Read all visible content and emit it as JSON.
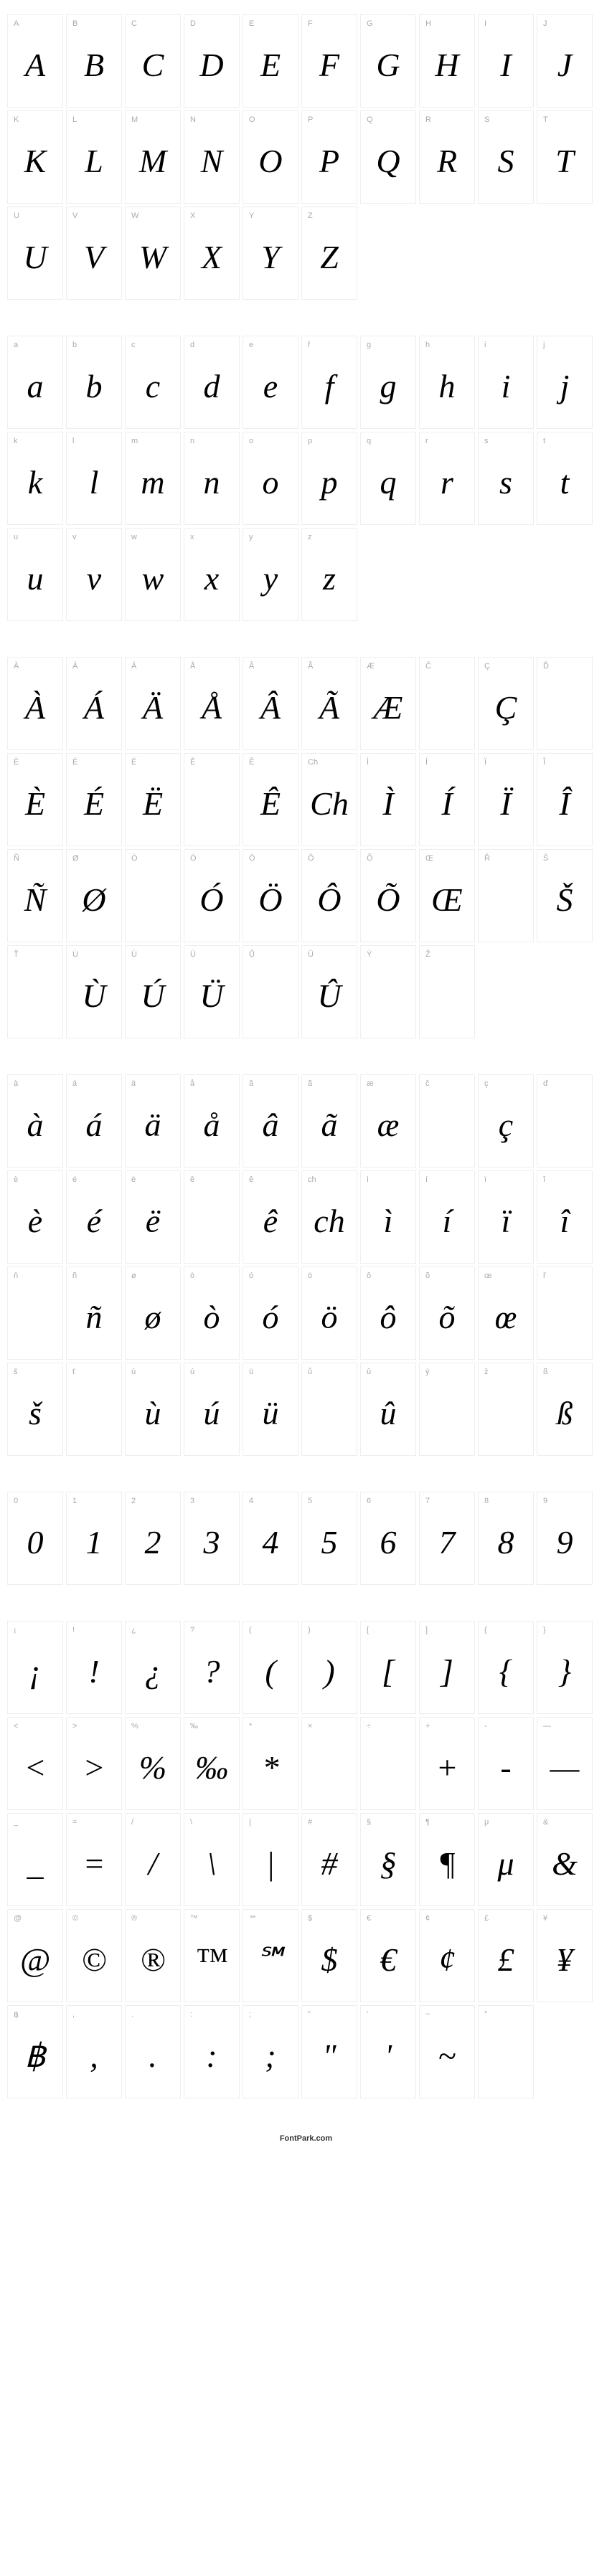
{
  "footer": "FontPark.com",
  "cell_style": {
    "width": 78,
    "height": 130,
    "border_color": "#eeeeee",
    "background": "#ffffff",
    "label_color": "#aaaaaa",
    "label_fontsize": 11,
    "glyph_fontsize": 46,
    "glyph_style": "italic",
    "glyph_color": "#000000"
  },
  "sections": [
    {
      "id": "uppercase",
      "glyphs": [
        {
          "label": "A",
          "char": "A"
        },
        {
          "label": "B",
          "char": "B"
        },
        {
          "label": "C",
          "char": "C"
        },
        {
          "label": "D",
          "char": "D"
        },
        {
          "label": "E",
          "char": "E"
        },
        {
          "label": "F",
          "char": "F"
        },
        {
          "label": "G",
          "char": "G"
        },
        {
          "label": "H",
          "char": "H"
        },
        {
          "label": "I",
          "char": "I"
        },
        {
          "label": "J",
          "char": "J"
        },
        {
          "label": "K",
          "char": "K"
        },
        {
          "label": "L",
          "char": "L"
        },
        {
          "label": "M",
          "char": "M"
        },
        {
          "label": "N",
          "char": "N"
        },
        {
          "label": "O",
          "char": "O"
        },
        {
          "label": "P",
          "char": "P"
        },
        {
          "label": "Q",
          "char": "Q"
        },
        {
          "label": "R",
          "char": "R"
        },
        {
          "label": "S",
          "char": "S"
        },
        {
          "label": "T",
          "char": "T"
        },
        {
          "label": "U",
          "char": "U"
        },
        {
          "label": "V",
          "char": "V"
        },
        {
          "label": "W",
          "char": "W"
        },
        {
          "label": "X",
          "char": "X"
        },
        {
          "label": "Y",
          "char": "Y"
        },
        {
          "label": "Z",
          "char": "Z"
        }
      ]
    },
    {
      "id": "lowercase",
      "glyphs": [
        {
          "label": "a",
          "char": "a"
        },
        {
          "label": "b",
          "char": "b"
        },
        {
          "label": "c",
          "char": "c"
        },
        {
          "label": "d",
          "char": "d"
        },
        {
          "label": "e",
          "char": "e"
        },
        {
          "label": "f",
          "char": "f"
        },
        {
          "label": "g",
          "char": "g"
        },
        {
          "label": "h",
          "char": "h"
        },
        {
          "label": "i",
          "char": "i"
        },
        {
          "label": "j",
          "char": "j"
        },
        {
          "label": "k",
          "char": "k"
        },
        {
          "label": "l",
          "char": "l"
        },
        {
          "label": "m",
          "char": "m"
        },
        {
          "label": "n",
          "char": "n"
        },
        {
          "label": "o",
          "char": "o"
        },
        {
          "label": "p",
          "char": "p"
        },
        {
          "label": "q",
          "char": "q"
        },
        {
          "label": "r",
          "char": "r"
        },
        {
          "label": "s",
          "char": "s"
        },
        {
          "label": "t",
          "char": "t"
        },
        {
          "label": "u",
          "char": "u"
        },
        {
          "label": "v",
          "char": "v"
        },
        {
          "label": "w",
          "char": "w"
        },
        {
          "label": "x",
          "char": "x"
        },
        {
          "label": "y",
          "char": "y"
        },
        {
          "label": "z",
          "char": "z"
        }
      ]
    },
    {
      "id": "uppercase-accented",
      "glyphs": [
        {
          "label": "À",
          "char": "À"
        },
        {
          "label": "Á",
          "char": "Á"
        },
        {
          "label": "Ä",
          "char": "Ä"
        },
        {
          "label": "Å",
          "char": "Å"
        },
        {
          "label": "Â",
          "char": "Â"
        },
        {
          "label": "Ã",
          "char": "Ã"
        },
        {
          "label": "Æ",
          "char": "Æ"
        },
        {
          "label": "Č",
          "char": "",
          "empty": true
        },
        {
          "label": "Ç",
          "char": "Ç"
        },
        {
          "label": "Ď",
          "char": "",
          "empty": true
        },
        {
          "label": "È",
          "char": "È"
        },
        {
          "label": "É",
          "char": "É"
        },
        {
          "label": "Ë",
          "char": "Ë"
        },
        {
          "label": "Ě",
          "char": "",
          "empty": true
        },
        {
          "label": "Ê",
          "char": "Ê"
        },
        {
          "label": "Ch",
          "char": "Ch"
        },
        {
          "label": "Ì",
          "char": "Ì"
        },
        {
          "label": "Í",
          "char": "Í"
        },
        {
          "label": "Ï",
          "char": "Ï"
        },
        {
          "label": "Î",
          "char": "Î"
        },
        {
          "label": "Ñ",
          "char": "Ñ"
        },
        {
          "label": "Ø",
          "char": "Ø"
        },
        {
          "label": "Ò",
          "char": "",
          "empty": true
        },
        {
          "label": "Ó",
          "char": "Ó"
        },
        {
          "label": "Ö",
          "char": "Ö"
        },
        {
          "label": "Ô",
          "char": "Ô"
        },
        {
          "label": "Õ",
          "char": "Õ"
        },
        {
          "label": "Œ",
          "char": "Œ"
        },
        {
          "label": "Ř",
          "char": "",
          "empty": true
        },
        {
          "label": "Š",
          "char": "Š"
        },
        {
          "label": "Ť",
          "char": "",
          "empty": true
        },
        {
          "label": "Ù",
          "char": "Ù"
        },
        {
          "label": "Ú",
          "char": "Ú"
        },
        {
          "label": "Ü",
          "char": "Ü"
        },
        {
          "label": "Ů",
          "char": "",
          "empty": true
        },
        {
          "label": "Û",
          "char": "Û"
        },
        {
          "label": "Ý",
          "char": "",
          "empty": true
        },
        {
          "label": "Ž",
          "char": "",
          "empty": true
        }
      ]
    },
    {
      "id": "lowercase-accented",
      "glyphs": [
        {
          "label": "à",
          "char": "à"
        },
        {
          "label": "á",
          "char": "á"
        },
        {
          "label": "ä",
          "char": "ä"
        },
        {
          "label": "å",
          "char": "å"
        },
        {
          "label": "â",
          "char": "â"
        },
        {
          "label": "ã",
          "char": "ã"
        },
        {
          "label": "æ",
          "char": "æ"
        },
        {
          "label": "č",
          "char": "",
          "empty": true
        },
        {
          "label": "ç",
          "char": "ç"
        },
        {
          "label": "ď",
          "char": "",
          "empty": true
        },
        {
          "label": "è",
          "char": "è"
        },
        {
          "label": "é",
          "char": "é"
        },
        {
          "label": "ë",
          "char": "ë"
        },
        {
          "label": "ě",
          "char": "",
          "empty": true
        },
        {
          "label": "ê",
          "char": "ê"
        },
        {
          "label": "ch",
          "char": "ch"
        },
        {
          "label": "ì",
          "char": "ì"
        },
        {
          "label": "í",
          "char": "í"
        },
        {
          "label": "ï",
          "char": "ï"
        },
        {
          "label": "î",
          "char": "î"
        },
        {
          "label": "ň",
          "char": "",
          "empty": true
        },
        {
          "label": "ñ",
          "char": "ñ"
        },
        {
          "label": "ø",
          "char": "ø"
        },
        {
          "label": "ò",
          "char": "ò"
        },
        {
          "label": "ó",
          "char": "ó"
        },
        {
          "label": "ö",
          "char": "ö"
        },
        {
          "label": "ô",
          "char": "ô"
        },
        {
          "label": "õ",
          "char": "õ"
        },
        {
          "label": "œ",
          "char": "œ"
        },
        {
          "label": "ř",
          "char": "",
          "empty": true
        },
        {
          "label": "š",
          "char": "š"
        },
        {
          "label": "ť",
          "char": "",
          "empty": true
        },
        {
          "label": "ù",
          "char": "ù"
        },
        {
          "label": "ú",
          "char": "ú"
        },
        {
          "label": "ü",
          "char": "ü"
        },
        {
          "label": "ů",
          "char": "",
          "empty": true
        },
        {
          "label": "û",
          "char": "û"
        },
        {
          "label": "ý",
          "char": "",
          "empty": true
        },
        {
          "label": "ž",
          "char": "",
          "empty": true
        },
        {
          "label": "ß",
          "char": "ß"
        }
      ]
    },
    {
      "id": "digits",
      "glyphs": [
        {
          "label": "0",
          "char": "0"
        },
        {
          "label": "1",
          "char": "1"
        },
        {
          "label": "2",
          "char": "2"
        },
        {
          "label": "3",
          "char": "3"
        },
        {
          "label": "4",
          "char": "4"
        },
        {
          "label": "5",
          "char": "5"
        },
        {
          "label": "6",
          "char": "6"
        },
        {
          "label": "7",
          "char": "7"
        },
        {
          "label": "8",
          "char": "8"
        },
        {
          "label": "9",
          "char": "9"
        }
      ]
    },
    {
      "id": "symbols",
      "glyphs": [
        {
          "label": "¡",
          "char": "¡"
        },
        {
          "label": "!",
          "char": "!"
        },
        {
          "label": "¿",
          "char": "¿"
        },
        {
          "label": "?",
          "char": "?"
        },
        {
          "label": "(",
          "char": "("
        },
        {
          "label": ")",
          "char": ")"
        },
        {
          "label": "[",
          "char": "["
        },
        {
          "label": "]",
          "char": "]"
        },
        {
          "label": "{",
          "char": "{"
        },
        {
          "label": "}",
          "char": "}"
        },
        {
          "label": "<",
          "char": "<"
        },
        {
          "label": ">",
          "char": ">"
        },
        {
          "label": "%",
          "char": "%"
        },
        {
          "label": "‰",
          "char": "‰"
        },
        {
          "label": "*",
          "char": "*"
        },
        {
          "label": "×",
          "char": "",
          "empty": true
        },
        {
          "label": "÷",
          "char": "",
          "empty": true
        },
        {
          "label": "+",
          "char": "+"
        },
        {
          "label": "-",
          "char": "-"
        },
        {
          "label": "—",
          "char": "—"
        },
        {
          "label": "_",
          "char": "_"
        },
        {
          "label": "=",
          "char": "="
        },
        {
          "label": "/",
          "char": "/"
        },
        {
          "label": "\\",
          "char": "\\"
        },
        {
          "label": "|",
          "char": "|"
        },
        {
          "label": "#",
          "char": "#"
        },
        {
          "label": "§",
          "char": "§"
        },
        {
          "label": "¶",
          "char": "¶"
        },
        {
          "label": "μ",
          "char": "μ"
        },
        {
          "label": "&",
          "char": "&"
        },
        {
          "label": "@",
          "char": "@"
        },
        {
          "label": "©",
          "char": "©"
        },
        {
          "label": "®",
          "char": "®"
        },
        {
          "label": "™",
          "char": "™"
        },
        {
          "label": "℠",
          "char": "℠"
        },
        {
          "label": "$",
          "char": "$"
        },
        {
          "label": "€",
          "char": "€"
        },
        {
          "label": "¢",
          "char": "¢"
        },
        {
          "label": "£",
          "char": "£"
        },
        {
          "label": "¥",
          "char": "¥"
        },
        {
          "label": "฿",
          "char": "฿"
        },
        {
          "label": ",",
          "char": ","
        },
        {
          "label": ".",
          "char": "."
        },
        {
          "label": ":",
          "char": ":"
        },
        {
          "label": ";",
          "char": ";"
        },
        {
          "label": "\"",
          "char": "\""
        },
        {
          "label": "'",
          "char": "'"
        },
        {
          "label": "~",
          "char": "~"
        },
        {
          "label": "°",
          "char": "",
          "empty": true
        }
      ]
    }
  ]
}
